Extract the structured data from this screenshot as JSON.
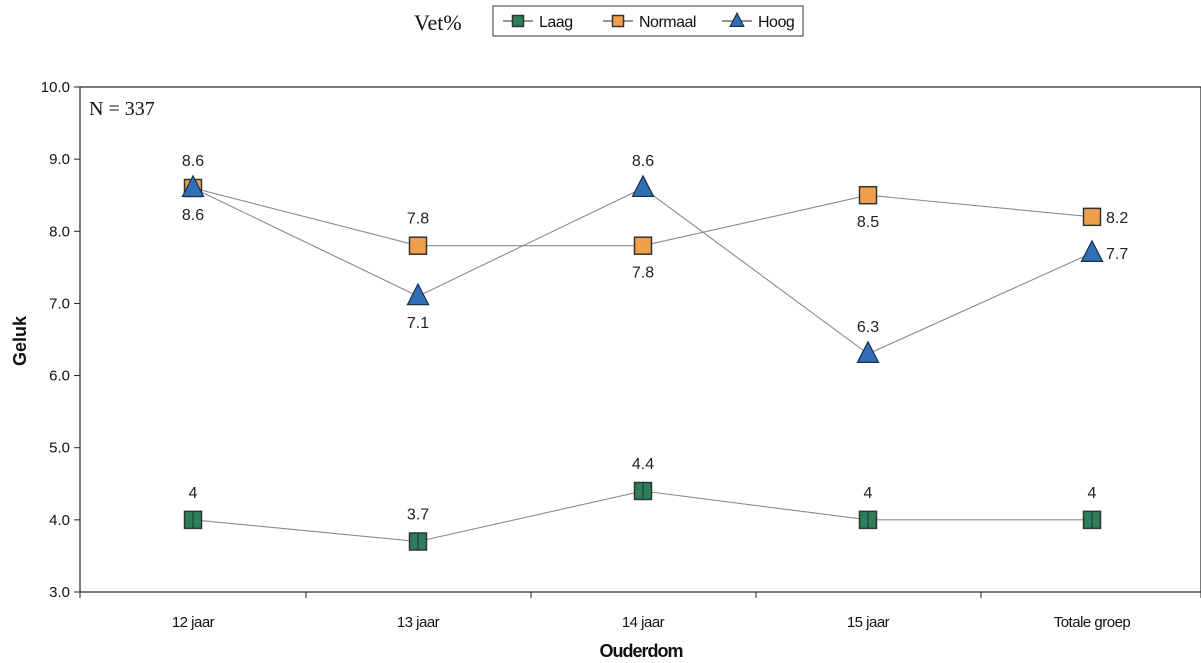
{
  "chart_data": {
    "type": "line",
    "title": "",
    "xlabel": "Ouderdom",
    "ylabel": "Geluk",
    "categories": [
      "12 jaar",
      "13 jaar",
      "14 jaar",
      "15 jaar",
      "Totale groep"
    ],
    "ylim": [
      3.0,
      10.0
    ],
    "yticks": [
      "3.0",
      "4.0",
      "5.0",
      "6.0",
      "7.0",
      "8.0",
      "9.0",
      "10.0"
    ],
    "legend": {
      "title": "Vet%",
      "placement": "top-center"
    },
    "annotation": "N = 337",
    "grid": false,
    "series": [
      {
        "name": "Laag",
        "marker": "square",
        "color": "#2e7d5b",
        "values": [
          4.0,
          3.7,
          4.4,
          4.0,
          4.0
        ],
        "labels": [
          "4",
          "3.7",
          "4.4",
          "4",
          "4"
        ]
      },
      {
        "name": "Normaal",
        "marker": "square",
        "color": "#f0a04b",
        "values": [
          8.6,
          7.8,
          7.8,
          8.5,
          8.2
        ],
        "labels": [
          "8.6",
          "7.8",
          "7.8",
          "8.5",
          "8.2"
        ]
      },
      {
        "name": "Hoog",
        "marker": "triangle",
        "color": "#2f6fb5",
        "values": [
          8.6,
          7.1,
          8.6,
          6.3,
          7.7
        ],
        "labels": [
          "8.6",
          "7.1",
          "8.6",
          "6.3",
          "7.7"
        ]
      }
    ]
  }
}
